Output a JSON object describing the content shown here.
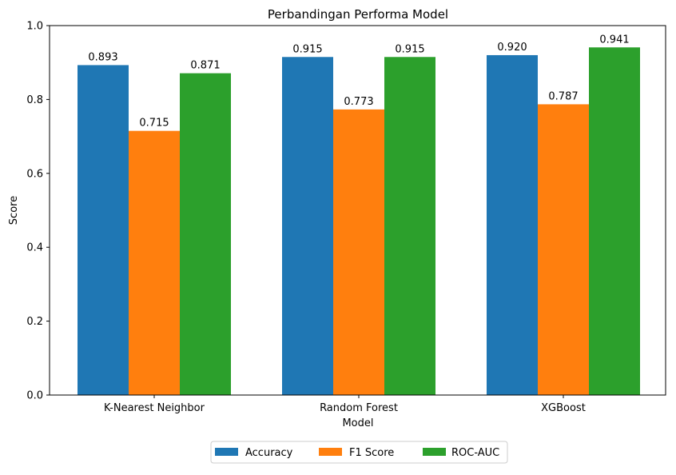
{
  "chart_data": {
    "type": "bar",
    "title": "Perbandingan Performa Model",
    "xlabel": "Model",
    "ylabel": "Score",
    "ylim": [
      0,
      1.0
    ],
    "yticks": [
      "0.0",
      "0.2",
      "0.4",
      "0.6",
      "0.8",
      "1.0"
    ],
    "ytick_values": [
      0,
      0.2,
      0.4,
      0.6,
      0.8,
      1.0
    ],
    "categories": [
      "K-Nearest Neighbor",
      "Random Forest",
      "XGBoost"
    ],
    "series": [
      {
        "name": "Accuracy",
        "color": "#1f77b4",
        "values": [
          0.893,
          0.915,
          0.92
        ],
        "labels": [
          "0.893",
          "0.915",
          "0.920"
        ]
      },
      {
        "name": "F1 Score",
        "color": "#ff7f0e",
        "values": [
          0.715,
          0.773,
          0.787
        ],
        "labels": [
          "0.715",
          "0.773",
          "0.787"
        ]
      },
      {
        "name": "ROC-AUC",
        "color": "#2ca02c",
        "values": [
          0.871,
          0.915,
          0.941
        ],
        "labels": [
          "0.871",
          "0.915",
          "0.941"
        ]
      }
    ],
    "grid": false,
    "legend_position": "bottom-center"
  }
}
